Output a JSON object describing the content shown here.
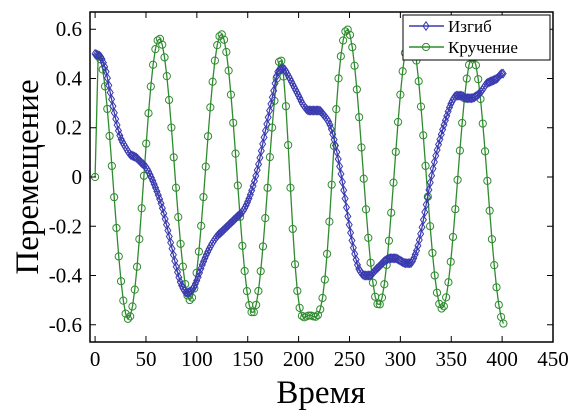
{
  "chart_data": {
    "type": "line",
    "xlabel": "Время",
    "ylabel": "Перемещение",
    "xlim": [
      -5,
      450
    ],
    "ylim": [
      -0.67,
      0.67
    ],
    "x_ticks": [
      0,
      50,
      100,
      150,
      200,
      250,
      300,
      350,
      400,
      450
    ],
    "y_ticks": [
      -0.6,
      -0.4,
      -0.2,
      0,
      0.2,
      0.4,
      0.6
    ],
    "y_tick_labels": [
      "-0.6",
      "-0.4",
      "-0.2",
      "0",
      "0.2",
      "0.4",
      "0.6"
    ],
    "grid": false,
    "legend_position": "top-right",
    "series": [
      {
        "name": "Изгиб",
        "color": "#3a3ab0",
        "marker": "diamond",
        "points": [
          [
            0,
            0.5
          ],
          [
            5,
            0.49
          ],
          [
            10,
            0.44
          ],
          [
            15,
            0.34
          ],
          [
            20,
            0.24
          ],
          [
            25,
            0.16
          ],
          [
            30,
            0.12
          ],
          [
            35,
            0.09
          ],
          [
            40,
            0.08
          ],
          [
            45,
            0.06
          ],
          [
            50,
            0.04
          ],
          [
            55,
            0.0
          ],
          [
            60,
            -0.05
          ],
          [
            65,
            -0.11
          ],
          [
            70,
            -0.19
          ],
          [
            75,
            -0.28
          ],
          [
            80,
            -0.37
          ],
          [
            85,
            -0.44
          ],
          [
            90,
            -0.47
          ],
          [
            95,
            -0.46
          ],
          [
            100,
            -0.42
          ],
          [
            105,
            -0.36
          ],
          [
            110,
            -0.31
          ],
          [
            115,
            -0.27
          ],
          [
            120,
            -0.24
          ],
          [
            125,
            -0.22
          ],
          [
            130,
            -0.2
          ],
          [
            135,
            -0.18
          ],
          [
            140,
            -0.16
          ],
          [
            145,
            -0.14
          ],
          [
            150,
            -0.1
          ],
          [
            155,
            -0.04
          ],
          [
            160,
            0.04
          ],
          [
            165,
            0.14
          ],
          [
            170,
            0.24
          ],
          [
            175,
            0.34
          ],
          [
            180,
            0.43
          ],
          [
            185,
            0.44
          ],
          [
            190,
            0.41
          ],
          [
            195,
            0.37
          ],
          [
            200,
            0.33
          ],
          [
            205,
            0.29
          ],
          [
            210,
            0.27
          ],
          [
            215,
            0.27
          ],
          [
            220,
            0.27
          ],
          [
            225,
            0.25
          ],
          [
            230,
            0.22
          ],
          [
            235,
            0.15
          ],
          [
            240,
            0.05
          ],
          [
            245,
            -0.07
          ],
          [
            250,
            -0.2
          ],
          [
            255,
            -0.31
          ],
          [
            260,
            -0.38
          ],
          [
            265,
            -0.4
          ],
          [
            270,
            -0.4
          ],
          [
            275,
            -0.38
          ],
          [
            280,
            -0.36
          ],
          [
            285,
            -0.34
          ],
          [
            290,
            -0.33
          ],
          [
            295,
            -0.33
          ],
          [
            300,
            -0.34
          ],
          [
            305,
            -0.35
          ],
          [
            310,
            -0.35
          ],
          [
            315,
            -0.31
          ],
          [
            320,
            -0.23
          ],
          [
            325,
            -0.12
          ],
          [
            330,
            -0.01
          ],
          [
            335,
            0.09
          ],
          [
            340,
            0.17
          ],
          [
            345,
            0.24
          ],
          [
            350,
            0.3
          ],
          [
            355,
            0.33
          ],
          [
            360,
            0.33
          ],
          [
            365,
            0.32
          ],
          [
            370,
            0.32
          ],
          [
            375,
            0.33
          ],
          [
            380,
            0.35
          ],
          [
            385,
            0.38
          ],
          [
            390,
            0.39
          ],
          [
            395,
            0.4
          ],
          [
            400,
            0.42
          ],
          [
            402,
            0.42
          ]
        ]
      },
      {
        "name": "Кручение",
        "color": "#2e8b2e",
        "marker": "circle",
        "model": {
          "start": 0,
          "end": 402,
          "step": 2.25,
          "first_value": 0,
          "phase_shift": 3,
          "periods": [
            [
              0,
              59.5
            ],
            [
              200,
              62
            ],
            [
              402,
              62
            ]
          ],
          "peaks": [
            [
              3,
              0.49
            ],
            [
              59,
              0.56
            ],
            [
              122,
              0.58
            ],
            [
              180,
              0.54
            ],
            [
              205,
              -0.57
            ],
            [
              240,
              0.6
            ],
            [
              302,
              0.58
            ],
            [
              362,
              0.52
            ],
            [
              402,
              0.28
            ]
          ],
          "troughs": [
            [
              30,
              -0.58
            ],
            [
              93,
              -0.5
            ],
            [
              150,
              -0.55
            ],
            [
              208,
              -0.57
            ],
            [
              271,
              -0.52
            ],
            [
              334,
              -0.53
            ],
            [
              380,
              -0.6
            ]
          ]
        }
      }
    ]
  }
}
